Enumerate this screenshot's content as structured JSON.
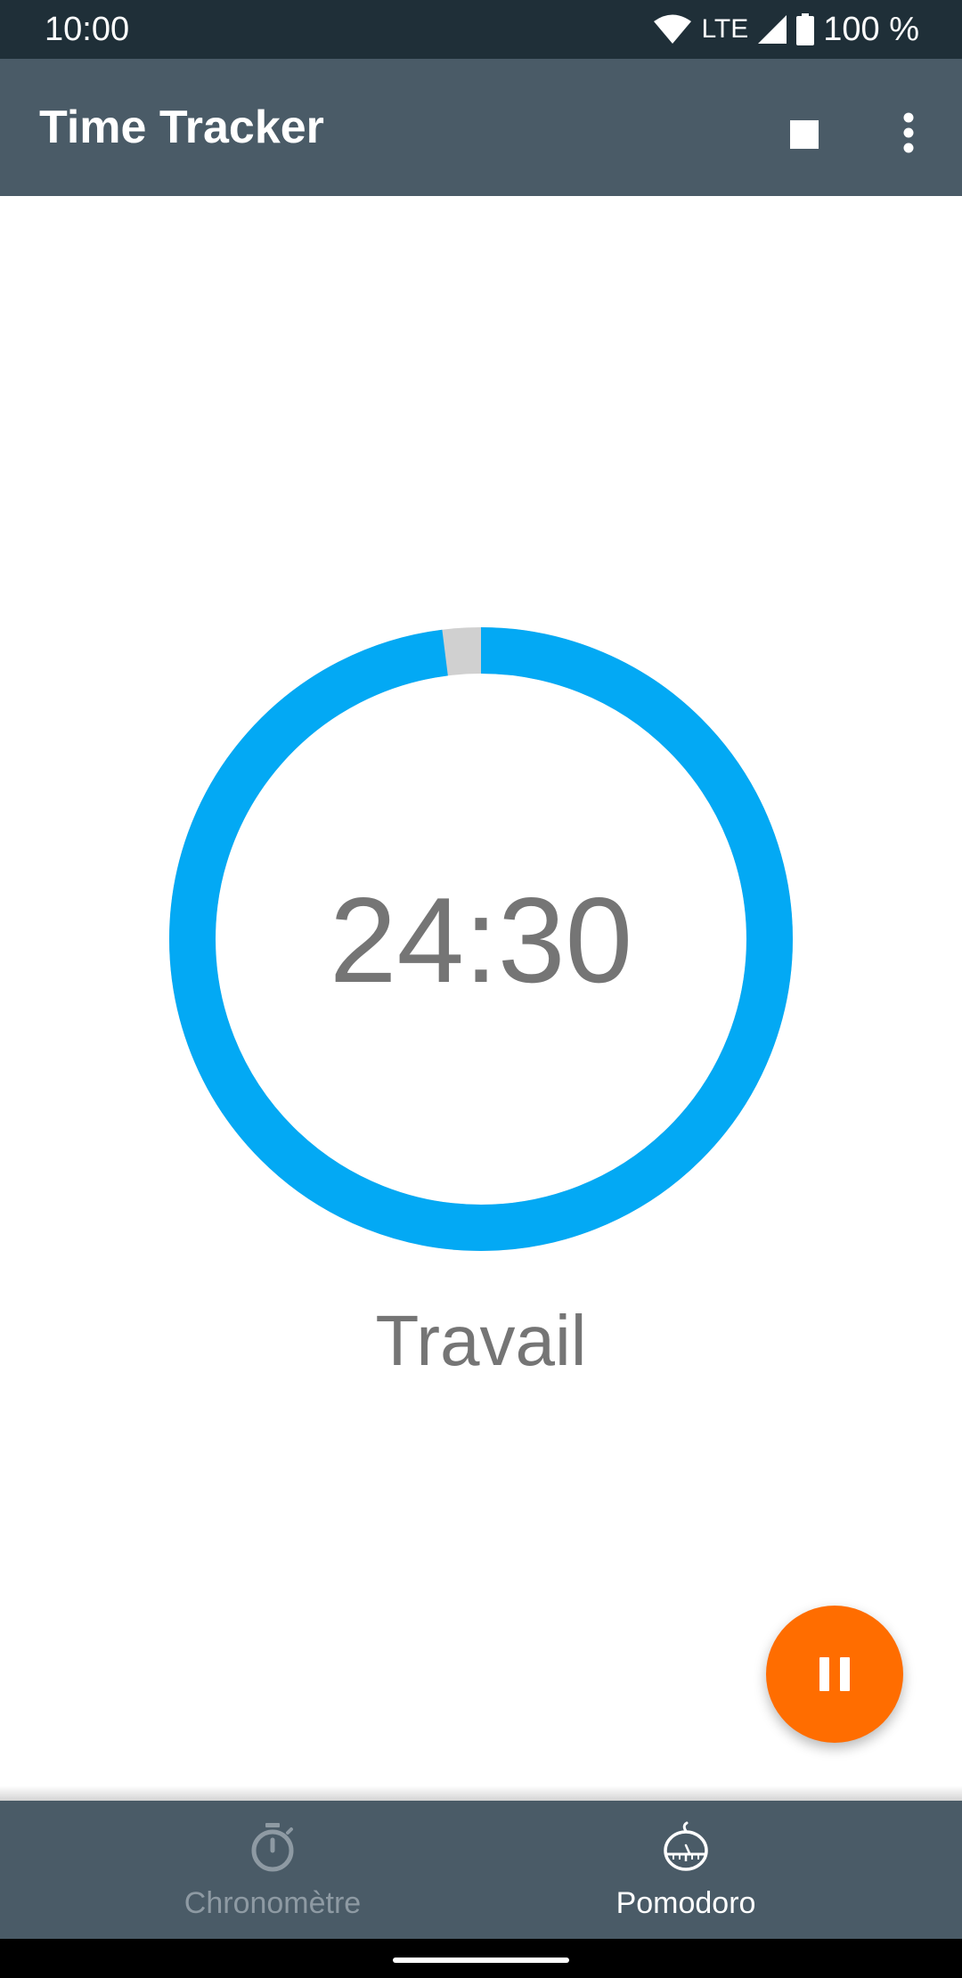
{
  "status_bar": {
    "time": "10:00",
    "network": "LTE",
    "battery": "100 %",
    "icons": [
      "wifi-icon",
      "cell-signal-icon",
      "battery-icon"
    ]
  },
  "app_bar": {
    "title": "Time Tracker",
    "actions": [
      "stop-icon",
      "more-vert-icon"
    ]
  },
  "timer": {
    "value": "24:30",
    "label": "Travail",
    "progress_remaining_fraction": 0.98,
    "ring_color": "#03a9f4",
    "track_color": "#d0d0d0"
  },
  "fab": {
    "icon": "pause-icon",
    "color": "#ff6d00"
  },
  "bottom_nav": {
    "items": [
      {
        "label": "Chronomètre",
        "icon": "stopwatch-icon",
        "active": false
      },
      {
        "label": "Pomodoro",
        "icon": "tomato-timer-icon",
        "active": true
      }
    ]
  },
  "colors": {
    "status_bar": "#1f2f38",
    "app_bar": "#4a5b67",
    "text_secondary": "#757575"
  }
}
